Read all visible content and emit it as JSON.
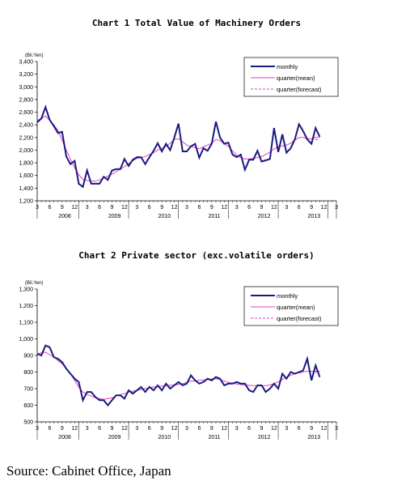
{
  "source": "Source: Cabinet Office, Japan",
  "chart_data": [
    {
      "type": "line",
      "title": "Chart 1 Total Value of Machinery Orders",
      "unit": "(Bil.Yen)",
      "ylim": [
        1200,
        3400
      ],
      "yticks": [
        1200,
        1400,
        1600,
        1800,
        2000,
        2200,
        2400,
        2600,
        2800,
        3000,
        3200,
        3400
      ],
      "ytick_labels": [
        "1,200",
        "1,400",
        "1,600",
        "1,800",
        "2,000",
        "2,200",
        "2,400",
        "2,600",
        "2,800",
        "3,000",
        "3,200",
        "3,400"
      ],
      "month_ticks": [
        "3",
        "6",
        "9",
        "12",
        "3",
        "6",
        "9",
        "12",
        "3",
        "6",
        "9",
        "12",
        "3",
        "6",
        "9",
        "12",
        "3",
        "6",
        "9",
        "12",
        "3",
        "6",
        "9",
        "12",
        "3"
      ],
      "year_labels": [
        {
          "label": "2008",
          "month_index": 7
        },
        {
          "label": "2009",
          "month_index": 19
        },
        {
          "label": "2010",
          "month_index": 31
        },
        {
          "label": "2011",
          "month_index": 43
        },
        {
          "label": "2012",
          "month_index": 55
        },
        {
          "label": "2013",
          "month_index": 67
        }
      ],
      "grid": false,
      "legend": "top-right",
      "series": [
        {
          "name": "monthly",
          "color": "#1a1a80",
          "style": "solid-thick",
          "start_index": 0,
          "values": [
            2440,
            2500,
            2680,
            2480,
            2380,
            2270,
            2290,
            1900,
            1780,
            1830,
            1470,
            1420,
            1680,
            1470,
            1470,
            1470,
            1580,
            1530,
            1680,
            1700,
            1700,
            1860,
            1750,
            1850,
            1890,
            1890,
            1780,
            1890,
            1990,
            2110,
            1980,
            2100,
            2000,
            2200,
            2420,
            1980,
            1980,
            2060,
            2100,
            1880,
            2030,
            1990,
            2100,
            2450,
            2200,
            2100,
            2120,
            1930,
            1890,
            1930,
            1690,
            1850,
            1850,
            1990,
            1820,
            1840,
            1860,
            2350,
            1970,
            2250,
            1960,
            2030,
            2170,
            2410,
            2300,
            2170,
            2100,
            2350,
            2210
          ]
        },
        {
          "name": "quarter(mean)",
          "color": "#e040c0",
          "style": "solid-thin",
          "start_index": 0,
          "values": [
            2470,
            2500,
            2540,
            2470,
            2400,
            2310,
            2160,
            2000,
            1860,
            1720,
            1610,
            1540,
            1520,
            1510,
            1510,
            1530,
            1560,
            1590,
            1620,
            1660,
            1700,
            1740,
            1790,
            1830,
            1870,
            1880,
            1900,
            1930,
            1960,
            2000,
            2030,
            2060,
            2110,
            2170,
            2180,
            2130,
            2080,
            2060,
            2040,
            2020,
            2050,
            2080,
            2110,
            2170,
            2150,
            2100,
            2060,
            1990,
            1920,
            1880,
            1860,
            1860,
            1870,
            1880,
            1900,
            1930,
            1970,
            2020,
            2050,
            2070,
            2080,
            2110,
            2160,
            2200,
            2200,
            2180,
            2180,
            2200,
            2200
          ]
        },
        {
          "name": "quarter(forecast)",
          "color": "#e040c0",
          "style": "dashed",
          "start_index": 66,
          "values": [
            2180,
            2170,
            2160
          ]
        }
      ]
    },
    {
      "type": "line",
      "title": "Chart 2 Private sector (exc.volatile orders)",
      "unit": "(Bil.Yen)",
      "ylim": [
        500,
        1300
      ],
      "yticks": [
        500,
        600,
        700,
        800,
        900,
        1000,
        1100,
        1200,
        1300
      ],
      "ytick_labels": [
        "500",
        "600",
        "700",
        "800",
        "900",
        "1,000",
        "1,100",
        "1,200",
        "1,300"
      ],
      "month_ticks": [
        "3",
        "6",
        "9",
        "12",
        "3",
        "6",
        "9",
        "12",
        "3",
        "6",
        "9",
        "12",
        "3",
        "6",
        "9",
        "12",
        "3",
        "6",
        "9",
        "12",
        "3",
        "6",
        "9",
        "12",
        "3"
      ],
      "year_labels": [
        {
          "label": "2008",
          "month_index": 7
        },
        {
          "label": "2009",
          "month_index": 19
        },
        {
          "label": "2010",
          "month_index": 31
        },
        {
          "label": "2011",
          "month_index": 43
        },
        {
          "label": "2012",
          "month_index": 55
        },
        {
          "label": "2013",
          "month_index": 67
        }
      ],
      "grid": false,
      "legend": "top-right",
      "series": [
        {
          "name": "monthly",
          "color": "#1a1a80",
          "style": "solid-thick",
          "start_index": 0,
          "values": [
            910,
            900,
            960,
            950,
            890,
            880,
            860,
            820,
            790,
            760,
            740,
            630,
            680,
            680,
            650,
            630,
            630,
            600,
            630,
            660,
            660,
            640,
            690,
            670,
            690,
            710,
            680,
            710,
            690,
            720,
            690,
            730,
            700,
            720,
            740,
            720,
            730,
            780,
            750,
            730,
            740,
            760,
            750,
            770,
            760,
            720,
            730,
            730,
            740,
            730,
            730,
            690,
            680,
            720,
            720,
            680,
            700,
            730,
            700,
            790,
            760,
            800,
            790,
            800,
            810,
            880,
            750,
            840,
            770
          ]
        },
        {
          "name": "quarter(mean)",
          "color": "#e040c0",
          "style": "solid-thin",
          "start_index": 0,
          "values": [
            910,
            915,
            920,
            905,
            890,
            870,
            850,
            820,
            790,
            750,
            710,
            680,
            665,
            655,
            645,
            640,
            635,
            640,
            645,
            655,
            665,
            670,
            680,
            685,
            690,
            695,
            700,
            705,
            710,
            712,
            715,
            718,
            720,
            722,
            725,
            730,
            738,
            745,
            748,
            750,
            752,
            755,
            758,
            760,
            755,
            745,
            738,
            732,
            728,
            725,
            722,
            720,
            718,
            717,
            716,
            718,
            722,
            730,
            742,
            755,
            768,
            780,
            790,
            795,
            800,
            805,
            805,
            805,
            805
          ]
        },
        {
          "name": "quarter(forecast)",
          "color": "#e040c0",
          "style": "dashed",
          "start_index": 66,
          "values": [
            805,
            800,
            798
          ]
        }
      ]
    }
  ]
}
